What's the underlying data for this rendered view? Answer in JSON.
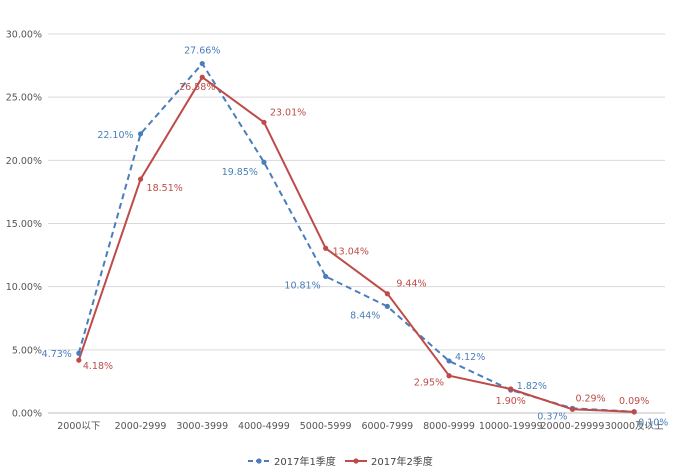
{
  "chart_data": {
    "type": "line",
    "categories": [
      "2000以下",
      "2000-2999",
      "3000-3999",
      "4000-4999",
      "5000-5999",
      "6000-7999",
      "8000-9999",
      "10000-19999",
      "20000-29999",
      "30000及以上"
    ],
    "y_ticks": [
      "0.00%",
      "5.00%",
      "10.00%",
      "15.00%",
      "20.00%",
      "25.00%",
      "30.00%"
    ],
    "ylim": [
      0,
      30
    ],
    "grid": true,
    "legend_position": "bottom",
    "series": [
      {
        "name": "2017年1季度",
        "color": "#4a7ebb",
        "line_style": "dashed",
        "values": [
          4.73,
          22.1,
          27.66,
          19.85,
          10.81,
          8.44,
          4.12,
          1.82,
          0.37,
          0.1
        ],
        "labels": [
          "4.73%",
          "22.10%",
          "27.66%",
          "19.85%",
          "10.81%",
          "8.44%",
          "4.12%",
          "1.82%",
          "0.37%",
          "0.10%"
        ]
      },
      {
        "name": "2017年2季度",
        "color": "#be4b48",
        "line_style": "solid",
        "values": [
          4.18,
          18.51,
          26.58,
          23.01,
          13.04,
          9.44,
          2.95,
          1.9,
          0.29,
          0.09
        ],
        "labels": [
          "4.18%",
          "18.51%",
          "26.58%",
          "23.01%",
          "13.04%",
          "9.44%",
          "2.95%",
          "1.90%",
          "0.29%",
          "0.09%"
        ]
      }
    ]
  }
}
